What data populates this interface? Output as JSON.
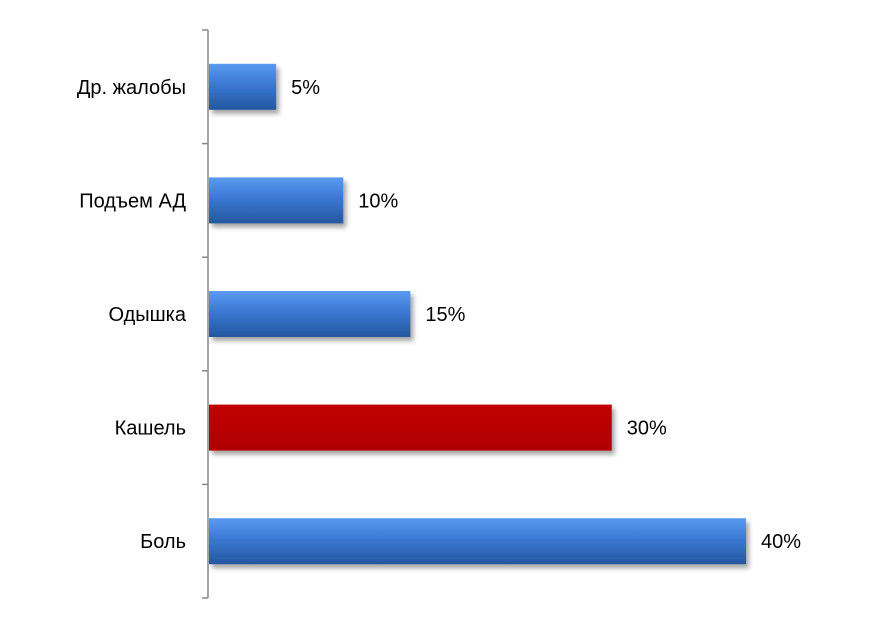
{
  "chart_data": {
    "type": "bar",
    "orientation": "horizontal",
    "categories": [
      "Др. жалобы",
      "Подъем АД",
      "Одышка",
      "Кашель",
      "Боль"
    ],
    "values": [
      5,
      10,
      15,
      30,
      40
    ],
    "value_labels": [
      "5%",
      "10%",
      "15%",
      "30%",
      "40%"
    ],
    "unit": "%",
    "xlim": [
      0,
      40
    ],
    "grid": false,
    "legend": "none",
    "colors": {
      "default_bar": "#3a78d4",
      "highlight_bar": "#c00000",
      "axis": "#888888"
    },
    "highlight_index": 3
  }
}
